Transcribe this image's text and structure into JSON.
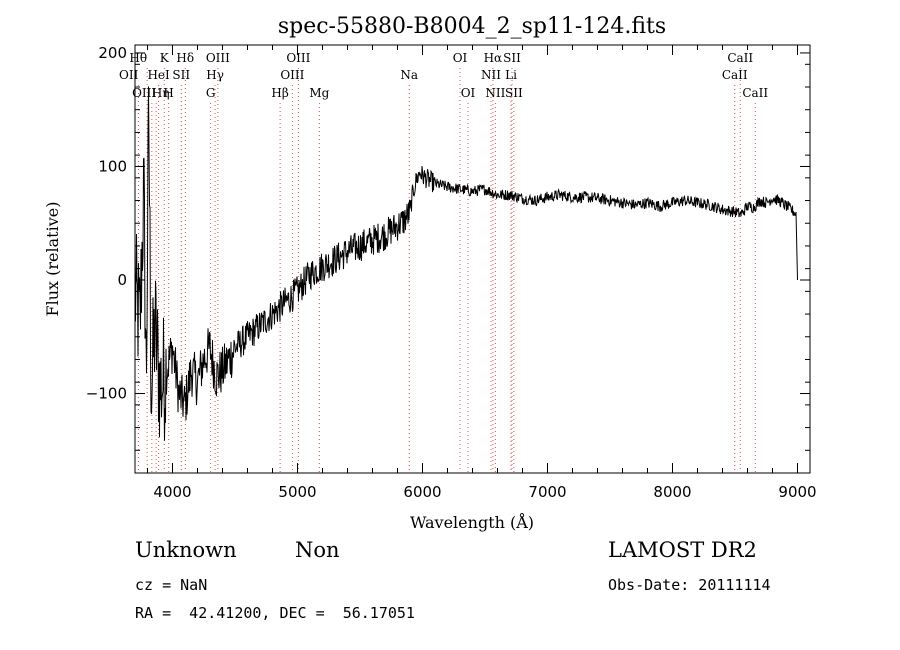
{
  "chart_data": {
    "type": "line",
    "title": "spec-55880-B8004_2_sp11-124.fits",
    "xlabel": "Wavelength (Å)",
    "ylabel": "Flux (relative)",
    "xlim": [
      3700,
      9100
    ],
    "ylim": [
      -170,
      207
    ],
    "xticks": [
      4000,
      5000,
      6000,
      7000,
      8000,
      9000
    ],
    "yticks": [
      -100,
      0,
      100,
      200
    ],
    "xtick_labels": [
      "4000",
      "5000",
      "6000",
      "7000",
      "8000",
      "9000"
    ],
    "ytick_labels": [
      "−100",
      "0",
      "100",
      "200"
    ],
    "grid": false,
    "line_color": "#000000",
    "marker_color": "#d9534f",
    "series": [
      {
        "x": [
          3700,
          3740,
          3770,
          3790,
          3810,
          3830,
          3860,
          3900,
          3950,
          4000,
          4050,
          4100,
          4150,
          4200,
          4250,
          4300,
          4350,
          4400,
          4450,
          4500,
          4600,
          4700,
          4800,
          4900,
          5000,
          5100,
          5200,
          5300,
          5400,
          5500,
          5600,
          5700,
          5800,
          5850,
          5900,
          5920,
          5950,
          5980,
          6000,
          6050,
          6100,
          6200,
          6300,
          6400,
          6500,
          6600,
          6700,
          6800,
          6900,
          7000,
          7100,
          7200,
          7300,
          7400,
          7500,
          7600,
          7700,
          7800,
          7900,
          8000,
          8100,
          8200,
          8300,
          8400,
          8500,
          8550,
          8600,
          8650,
          8700,
          8750,
          8800,
          8850,
          8900,
          8950,
          8990,
          9000
        ],
        "y": [
          -10,
          -40,
          80,
          -90,
          150,
          -100,
          -40,
          -95,
          -80,
          -60,
          -100,
          -110,
          -80,
          -90,
          -70,
          -60,
          -85,
          -80,
          -70,
          -60,
          -50,
          -40,
          -30,
          -20,
          -10,
          5,
          12,
          18,
          25,
          30,
          35,
          40,
          48,
          52,
          60,
          75,
          88,
          95,
          92,
          88,
          85,
          82,
          80,
          78,
          80,
          75,
          75,
          72,
          70,
          73,
          75,
          73,
          73,
          72,
          70,
          68,
          66,
          68,
          65,
          68,
          70,
          68,
          66,
          62,
          60,
          58,
          65,
          64,
          70,
          68,
          72,
          70,
          66,
          62,
          58,
          0
        ]
      }
    ],
    "line_markers": [
      {
        "label": "Hθ",
        "x": 3797,
        "row": 1,
        "anchor": "end"
      },
      {
        "label": "K",
        "x": 3934,
        "row": 1,
        "anchor": "middle"
      },
      {
        "label": "Hδ",
        "x": 4102,
        "row": 1,
        "anchor": "middle"
      },
      {
        "label": "OII",
        "x": 3727,
        "row": 2,
        "anchor": "end"
      },
      {
        "label": "HeI",
        "x": 3889,
        "row": 2,
        "anchor": "middle"
      },
      {
        "label": "SII",
        "x": 4070,
        "row": 2,
        "anchor": "middle"
      },
      {
        "label": "OIII",
        "x": 3869,
        "row": 3,
        "anchor": "end"
      },
      {
        "label": "Hη",
        "x": 3835,
        "row": 3,
        "anchor": "start"
      },
      {
        "label": "H",
        "x": 3969,
        "row": 3,
        "anchor": "middle"
      },
      {
        "label": "OIII",
        "x": 4363,
        "row": 1,
        "anchor": "middle"
      },
      {
        "label": "Hγ",
        "x": 4341,
        "row": 2,
        "anchor": "middle"
      },
      {
        "label": "G",
        "x": 4305,
        "row": 3,
        "anchor": "middle"
      },
      {
        "label": "OIII",
        "x": 5007,
        "row": 1,
        "anchor": "middle"
      },
      {
        "label": "OIII",
        "x": 4959,
        "row": 2,
        "anchor": "middle"
      },
      {
        "label": "Hβ",
        "x": 4861,
        "row": 3,
        "anchor": "middle"
      },
      {
        "label": "Mg",
        "x": 5175,
        "row": 3,
        "anchor": "middle"
      },
      {
        "label": "Na",
        "x": 5894,
        "row": 2,
        "anchor": "middle"
      },
      {
        "label": "OI",
        "x": 6300,
        "row": 1,
        "anchor": "middle"
      },
      {
        "label": "OI",
        "x": 6364,
        "row": 3,
        "anchor": "middle"
      },
      {
        "label": "Hα",
        "x": 6563,
        "row": 1,
        "anchor": "middle"
      },
      {
        "label": "SII",
        "x": 6716,
        "row": 1,
        "anchor": "middle"
      },
      {
        "label": "NII",
        "x": 6548,
        "row": 2,
        "anchor": "middle"
      },
      {
        "label": "Li",
        "x": 6708,
        "row": 2,
        "anchor": "middle"
      },
      {
        "label": "NII",
        "x": 6583,
        "row": 3,
        "anchor": "middle"
      },
      {
        "label": "SII",
        "x": 6731,
        "row": 3,
        "anchor": "middle"
      },
      {
        "label": "CaII",
        "x": 8542,
        "row": 1,
        "anchor": "middle"
      },
      {
        "label": "CaII",
        "x": 8498,
        "row": 2,
        "anchor": "middle"
      },
      {
        "label": "CaII",
        "x": 8662,
        "row": 3,
        "anchor": "middle"
      }
    ]
  },
  "info": {
    "class_label": "Unknown",
    "subclass_label": "Non",
    "survey": "LAMOST DR2",
    "cz": "cz = NaN",
    "obs_date": "Obs-Date: 20111114",
    "coords": "RA =  42.41200, DEC =  56.17051"
  }
}
